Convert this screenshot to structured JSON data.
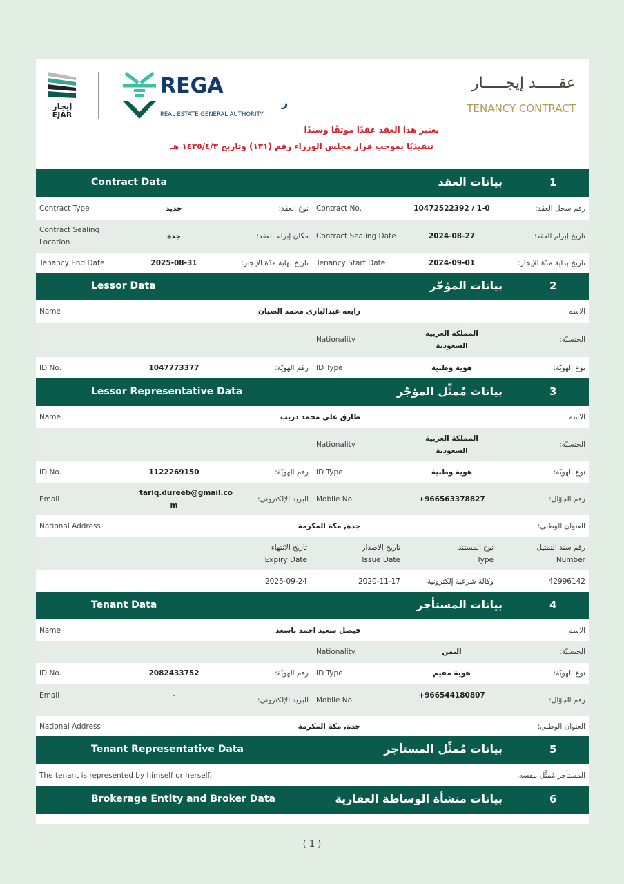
{
  "header": {
    "ejar_logo": {
      "ar": "إيجار",
      "en": "EJAR"
    },
    "rega_logo": {
      "en": "REGA",
      "ar": "الهيئة العامة للعقار",
      "sub": "REAL ESTATE GENERAL AUTHORITY"
    },
    "title_ar": "عقـــــد إيجـــــار",
    "title_en": "TENANCY CONTRACT",
    "notice_line1": "يعتبر هذا العقد عقدًا موثقًا وسندًا",
    "notice_line2": "تنفيذيًا بموجب قرار مجلس الوزراء رقم (١٣١) وتاريخ ١٤٣٥/٤/٣ هـ",
    "brand_color": "#0b5b4c",
    "notice_color": "#d0202a"
  },
  "sections": [
    {
      "num": "1",
      "en": "Contract Data",
      "ar": "بيانات العقد"
    },
    {
      "num": "2",
      "en": "Lessor Data",
      "ar": "بيانات المؤجّر"
    },
    {
      "num": "3",
      "en": "Lessor Representative Data",
      "ar": "بيانات مُمثِّل المؤجّر"
    },
    {
      "num": "4",
      "en": "Tenant Data",
      "ar": "بيانات المستأجر"
    },
    {
      "num": "5",
      "en": "Tenant Representative Data",
      "ar": "بيانات مُمثِّل المستأجر"
    },
    {
      "num": "6",
      "en": "Brokerage Entity and Broker Data",
      "ar": "بيانات منشأة الوساطة العقارية"
    }
  ],
  "rows": [
    [
      "Contract Type",
      "جديد",
      "نوع العقد:",
      "Contract No.",
      "10472522392 / 1-0",
      "رقم سجل العقد:"
    ],
    [
      "Contract Sealing\nLocation",
      "جدة",
      "مكان إبرام العقد:",
      "Contract Sealing Date",
      "2024-08-27",
      "تاريخ إبرام العقد:"
    ],
    [
      "Tenancy End Date",
      "2025-08-31",
      "تاريخ نهاية مدّة الإيجار:",
      "Tenancy Start Date",
      "2024-09-01",
      "تاريخ بداية مدّة الإيجار:"
    ],
    [
      "Name",
      "رابعه عبدالبارى محمد الصبان",
      "الاسم:"
    ],
    [
      "Nationality",
      "المملكة العربية\nالسعودية",
      "الجنسيّة:"
    ],
    [
      "ID No.",
      "1047773377",
      "رقم الهويّة:",
      "ID Type",
      "هوية وطنية",
      "نوع الهويّة:"
    ],
    [
      "Name",
      "طارق علي محمد دريب",
      "الاسم:"
    ],
    [
      "Nationality",
      "المملكة العربية\nالسعودية",
      "الجنسيّة:"
    ],
    [
      "ID No.",
      "1122269150",
      "رقم الهويّة:",
      "ID Type",
      "هوية وطنية",
      "نوع الهويّة:"
    ],
    [
      "Email",
      "tariq.dureeb@gmail.co\nm",
      "البريد الإلكتروني:",
      "Mobile No.",
      "+966563378827",
      "رقم الجوّال:"
    ],
    [
      "National Address",
      "جدة, مكة المكرمة",
      "العنوان الوطني:"
    ],
    [
      "تاريخ الانتهاء\nExpiry Date",
      "تاريخ الاصدار\nIssue Date",
      "نوع المستند\nType",
      "رقم سند التمثيل\nNumber"
    ],
    [
      "2025-09-24",
      "2020-11-17",
      "وكالة شرعية إلكترونية",
      "42996142"
    ],
    [
      "Name",
      "فيصل سعيد احمد باسعد",
      "الاسم:"
    ],
    [
      "Nationality",
      "اليمن",
      "الجنسيّة:"
    ],
    [
      "ID No.",
      "2082433752",
      "رقم الهويّة:",
      "ID Type",
      "هوية مقيم",
      "نوع الهويّة:"
    ],
    [
      "Email",
      "-",
      "البريد الإلكتروني:",
      "Mobile No.",
      "+966544180807",
      "رقم الجوّال:"
    ],
    [
      "National Address",
      "جدة, مكة المكرمة",
      "العنوان الوطني:"
    ],
    [
      "The tenant is represented by himself or herself.",
      "المستأجر مُمثَّل بنفسه."
    ]
  ],
  "footer": {
    "page": "( 1 )"
  }
}
